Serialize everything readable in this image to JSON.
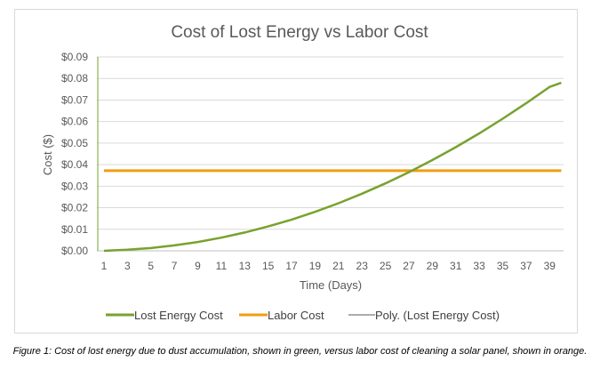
{
  "chart_data": {
    "type": "line",
    "title": "Cost of Lost Energy vs Labor Cost",
    "xlabel": "Time (Days)",
    "ylabel": "Cost ($)",
    "ylim": [
      0,
      0.09
    ],
    "xlim": [
      1,
      40
    ],
    "y_ticks": [
      "$0.00",
      "$0.01",
      "$0.02",
      "$0.03",
      "$0.04",
      "$0.05",
      "$0.06",
      "$0.07",
      "$0.08",
      "$0.09"
    ],
    "x_ticks": [
      "1",
      "3",
      "5",
      "7",
      "9",
      "11",
      "13",
      "15",
      "17",
      "19",
      "21",
      "23",
      "25",
      "27",
      "29",
      "31",
      "33",
      "35",
      "37",
      "39"
    ],
    "grid": "horizontal",
    "legend_position": "bottom",
    "series": [
      {
        "name": "Lost Energy Cost",
        "color": "#77a22f",
        "x": [
          1,
          3,
          5,
          7,
          9,
          11,
          13,
          15,
          17,
          19,
          21,
          23,
          25,
          27,
          29,
          31,
          33,
          35,
          37,
          39,
          40
        ],
        "values": [
          0.0,
          0.0005,
          0.0013,
          0.0025,
          0.0041,
          0.0061,
          0.0085,
          0.0113,
          0.0145,
          0.0181,
          0.0221,
          0.0265,
          0.0313,
          0.0365,
          0.0421,
          0.0481,
          0.0545,
          0.0613,
          0.0685,
          0.0761,
          0.078
        ]
      },
      {
        "name": "Labor Cost",
        "color": "#f39c12",
        "x": [
          1,
          40
        ],
        "values": [
          0.0372,
          0.0372
        ]
      },
      {
        "name": "Poly. (Lost Energy Cost)",
        "color": "#595959",
        "legend_only": true
      }
    ]
  },
  "caption": "Figure 1: Cost of lost energy due to dust accumulation, shown in green, versus labor cost of cleaning a solar panel, shown in orange."
}
